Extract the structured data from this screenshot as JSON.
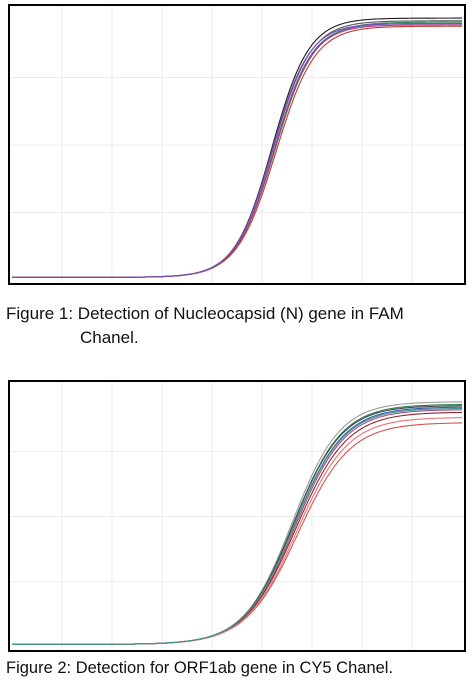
{
  "figures": [
    {
      "caption_line1": "Figure 1: Detection of Nucleocapsid (N) gene in FAM",
      "caption_line2": "Chanel."
    },
    {
      "caption": "Figure 2: Detection for ORF1ab gene in CY5 Chanel."
    }
  ],
  "chart_data": [
    {
      "type": "line",
      "title": "",
      "xlabel": "",
      "ylabel": "",
      "xlim": [
        0,
        45
      ],
      "ylim": [
        0,
        100
      ],
      "grid": true,
      "gridlines": {
        "vertical": 9,
        "horizontal": 4
      },
      "curve_model": "sigmoid",
      "series": [
        {
          "color": "#1a1a1a",
          "baseline": 1,
          "plateau": 97,
          "midpoint": 26.0,
          "slope": 1.85
        },
        {
          "color": "#555555",
          "baseline": 1,
          "plateau": 96,
          "midpoint": 26.1,
          "slope": 1.9
        },
        {
          "color": "#3b4ea8",
          "baseline": 1,
          "plateau": 95,
          "midpoint": 26.2,
          "slope": 1.9
        },
        {
          "color": "#2e8b57",
          "baseline": 1,
          "plateau": 95.5,
          "midpoint": 26.3,
          "slope": 1.95
        },
        {
          "color": "#b03a8c",
          "baseline": 1,
          "plateau": 94.5,
          "midpoint": 26.2,
          "slope": 1.9
        },
        {
          "color": "#c0392b",
          "baseline": 1,
          "plateau": 94,
          "midpoint": 26.4,
          "slope": 1.95
        },
        {
          "color": "#7a4fbf",
          "baseline": 1,
          "plateau": 95,
          "midpoint": 26.0,
          "slope": 1.85
        }
      ]
    },
    {
      "type": "line",
      "title": "",
      "xlabel": "",
      "ylabel": "",
      "xlim": [
        0,
        45
      ],
      "ylim": [
        0,
        100
      ],
      "grid": true,
      "gridlines": {
        "vertical": 9,
        "horizontal": 4
      },
      "curve_model": "sigmoid",
      "series": [
        {
          "color": "#9a9a9a",
          "baseline": 1,
          "plateau": 94,
          "midpoint": 28.0,
          "slope": 2.4
        },
        {
          "color": "#2e7d4f",
          "baseline": 1,
          "plateau": 93,
          "midpoint": 28.1,
          "slope": 2.45
        },
        {
          "color": "#2f5fb0",
          "baseline": 1,
          "plateau": 92,
          "midpoint": 28.2,
          "slope": 2.5
        },
        {
          "color": "#b04a8a",
          "baseline": 1,
          "plateau": 91,
          "midpoint": 28.3,
          "slope": 2.5
        },
        {
          "color": "#8b2c2c",
          "baseline": 1,
          "plateau": 90,
          "midpoint": 28.4,
          "slope": 2.55
        },
        {
          "color": "#4a4a4a",
          "baseline": 1,
          "plateau": 92.5,
          "midpoint": 28.1,
          "slope": 2.45
        },
        {
          "color": "#d9534f",
          "baseline": 1,
          "plateau": 86,
          "midpoint": 28.6,
          "slope": 2.6
        },
        {
          "color": "#e57373",
          "baseline": 1,
          "plateau": 88,
          "midpoint": 28.5,
          "slope": 2.55
        },
        {
          "color": "#3a9a8a",
          "baseline": 1,
          "plateau": 91.5,
          "midpoint": 28.2,
          "slope": 2.5
        }
      ]
    }
  ]
}
